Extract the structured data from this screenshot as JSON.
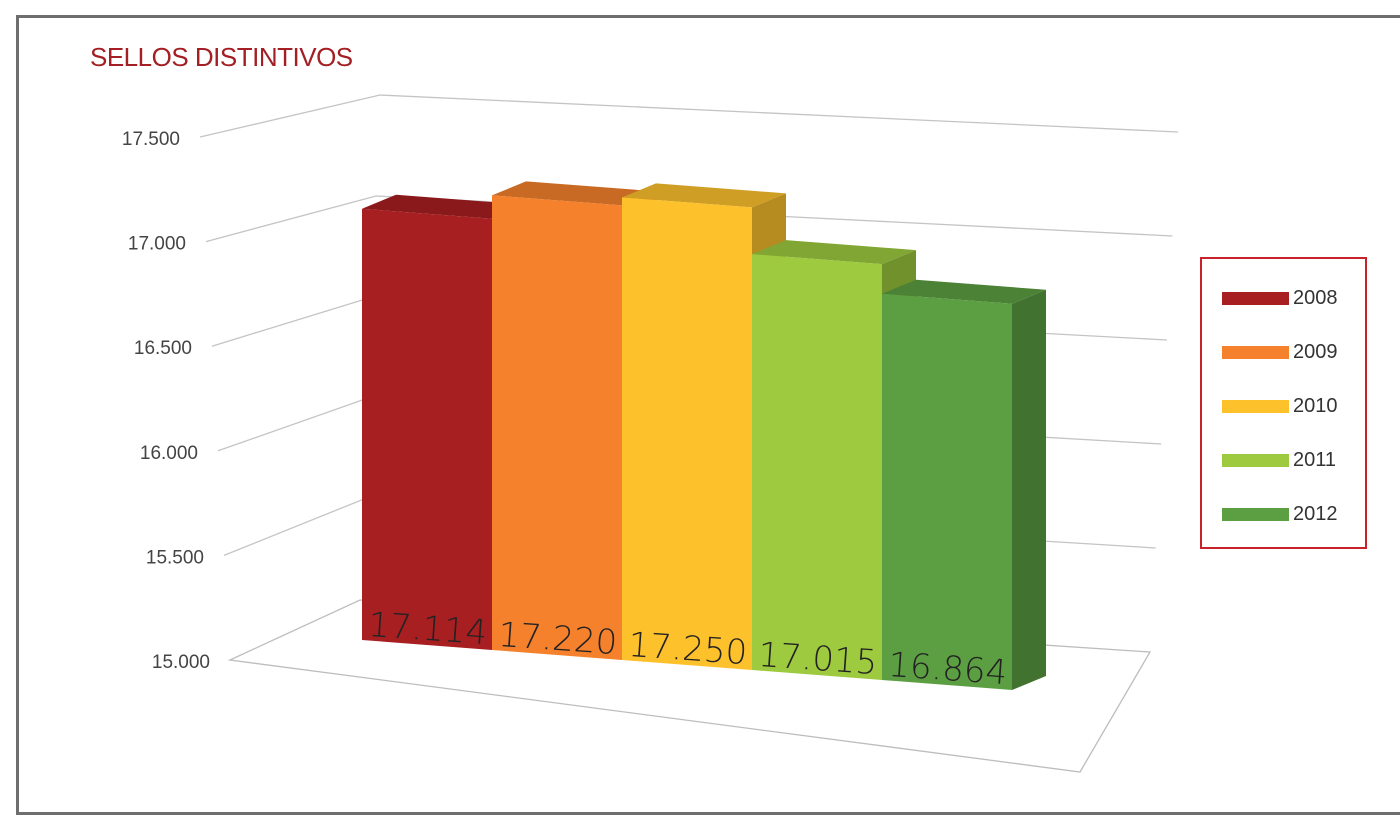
{
  "chart_data": {
    "type": "bar",
    "title": "SELLOS DISTINTIVOS",
    "categories": [
      "2008",
      "2009",
      "2010",
      "2011",
      "2012"
    ],
    "values": [
      17114,
      17220,
      17250,
      17015,
      16864
    ],
    "value_labels": [
      "17.114",
      "17.220",
      "17.250",
      "17.015",
      "16.864"
    ],
    "ylim": [
      15000,
      17500
    ],
    "yticks": [
      15000,
      15500,
      16000,
      16500,
      17000,
      17500
    ],
    "ytick_labels": [
      "15.000",
      "15.500",
      "16.000",
      "16.500",
      "17.000",
      "17.500"
    ],
    "xlabel": "",
    "ylabel": "",
    "grid": true,
    "legend": "right",
    "series": [
      {
        "name": "2008",
        "color": "#a81f22"
      },
      {
        "name": "2009",
        "color": "#f5812c"
      },
      {
        "name": "2010",
        "color": "#fdc12c"
      },
      {
        "name": "2011",
        "color": "#9dca3e"
      },
      {
        "name": "2012",
        "color": "#5c9f42"
      }
    ]
  }
}
